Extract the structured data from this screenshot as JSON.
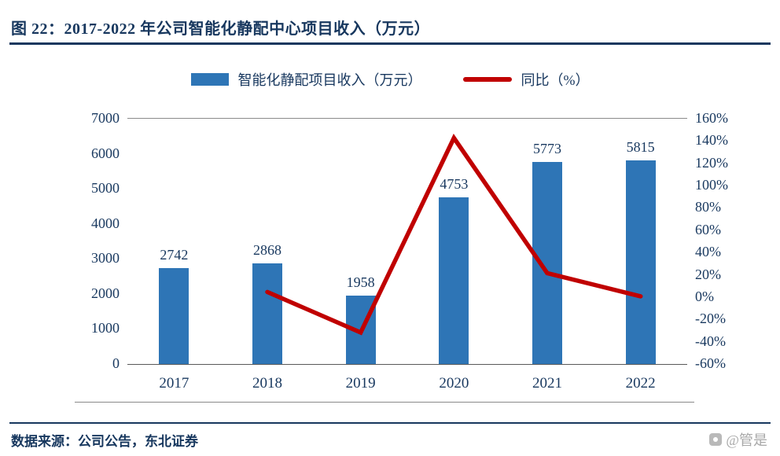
{
  "header": {
    "title": "图 22：2017-2022 年公司智能化静配中心项目收入（万元）"
  },
  "legend": {
    "revenue_label": "智能化静配项目收入（万元）",
    "yoy_label": "同比（%）"
  },
  "chart_data": {
    "type": "bar+line",
    "title": "2017-2022 年公司智能化静配中心项目收入（万元）",
    "categories": [
      "2017",
      "2018",
      "2019",
      "2020",
      "2021",
      "2022"
    ],
    "series": [
      {
        "name": "智能化静配项目收入（万元）",
        "type": "bar",
        "axis": "left",
        "color": "#2E75B6",
        "values": [
          2742,
          2868,
          1958,
          4753,
          5773,
          5815
        ]
      },
      {
        "name": "同比（%）",
        "type": "line",
        "axis": "right",
        "color": "#C00000",
        "values": [
          null,
          4.6,
          -31.7,
          142.7,
          21.5,
          0.7
        ]
      }
    ],
    "bar_labels": [
      "2742",
      "2868",
      "1958",
      "4753",
      "5773",
      "5815"
    ],
    "left_axis": {
      "min": 0,
      "max": 7000,
      "ticks": [
        "7000",
        "6000",
        "5000",
        "4000",
        "3000",
        "2000",
        "1000",
        "0"
      ]
    },
    "right_axis": {
      "min": -60,
      "max": 160,
      "ticks": [
        "160%",
        "140%",
        "120%",
        "100%",
        "80%",
        "60%",
        "40%",
        "20%",
        "0%",
        "-20%",
        "-40%",
        "-60%"
      ]
    },
    "grid": "top-and-bottom-only",
    "legend_position": "top-center"
  },
  "footer": {
    "source": "数据来源：公司公告，东北证券",
    "watermark": "@管是"
  },
  "colors": {
    "bar": "#2E75B6",
    "line": "#C00000",
    "text": "#17375E"
  }
}
